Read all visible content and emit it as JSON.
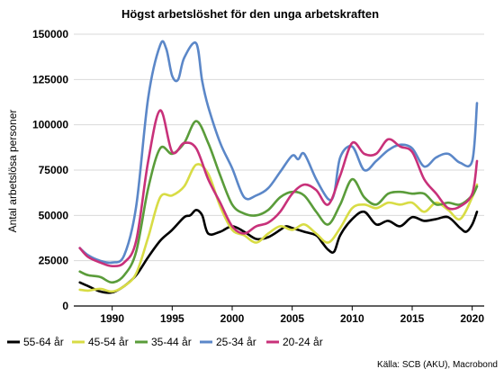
{
  "chart_data": {
    "type": "line",
    "title": "Högst arbetslöshet för den unga arbetskraften",
    "ylabel": "Antal arbetslösa personer",
    "xlabel": "",
    "source": "Källa: SCB (AKU), Macrobond",
    "xlim": [
      1986.8,
      2021.0
    ],
    "ylim": [
      0,
      150000
    ],
    "y_ticks": [
      0,
      25000,
      50000,
      75000,
      100000,
      125000,
      150000
    ],
    "x_ticks": [
      1990,
      1995,
      2000,
      2005,
      2010,
      2015,
      2020
    ],
    "legend_position": "bottom",
    "grid": {
      "horizontal": true,
      "vertical": false
    },
    "series": [
      {
        "name": "55-64 år",
        "color": "#000000",
        "x": [
          1987.3,
          1988,
          1989,
          1990,
          1991,
          1992,
          1993,
          1994,
          1995,
          1996,
          1996.5,
          1997,
          1997.5,
          1998,
          1999,
          2000,
          2001,
          2002,
          2003,
          2004,
          2004.5,
          2005,
          2006,
          2007,
          2007.5,
          2008,
          2008.5,
          2009,
          2010,
          2011,
          2012,
          2013,
          2014,
          2015,
          2016,
          2017,
          2018,
          2019,
          2019.5,
          2020,
          2020.4
        ],
        "y": [
          13000,
          11000,
          8000,
          7500,
          11000,
          17000,
          27000,
          36000,
          42000,
          49000,
          50000,
          53000,
          50000,
          40000,
          41000,
          44000,
          41000,
          37000,
          38000,
          42000,
          44000,
          43000,
          41000,
          39000,
          35000,
          31000,
          30000,
          39000,
          48000,
          52000,
          45000,
          47000,
          44000,
          49000,
          47000,
          48000,
          49000,
          43000,
          41000,
          45000,
          52000
        ]
      },
      {
        "name": "45-54 år",
        "color": "#d8dc45",
        "x": [
          1987.3,
          1988,
          1989,
          1990,
          1991,
          1992,
          1993,
          1994,
          1995,
          1996,
          1997,
          1998,
          1999,
          2000,
          2001,
          2002,
          2003,
          2004,
          2005,
          2006,
          2007,
          2008,
          2009,
          2010,
          2011,
          2012,
          2013,
          2014,
          2015,
          2016,
          2017,
          2018,
          2019,
          2020,
          2020.4
        ],
        "y": [
          9000,
          8500,
          9500,
          8000,
          11000,
          18000,
          38000,
          60000,
          61000,
          66000,
          78000,
          73000,
          55000,
          42000,
          39000,
          35000,
          40000,
          44000,
          42000,
          45000,
          40000,
          35000,
          43000,
          54000,
          56000,
          54000,
          57000,
          56000,
          57000,
          52000,
          57000,
          53000,
          48000,
          60000,
          67000
        ]
      },
      {
        "name": "35-44 år",
        "color": "#5a9c3a",
        "x": [
          1987.3,
          1988,
          1989,
          1990,
          1991,
          1992,
          1993,
          1994,
          1995,
          1996,
          1997,
          1998,
          1999,
          2000,
          2001,
          2002,
          2003,
          2004,
          2005,
          2006,
          2007,
          2008,
          2009,
          2010,
          2011,
          2012,
          2013,
          2014,
          2015,
          2016,
          2017,
          2018,
          2019,
          2020,
          2020.4
        ],
        "y": [
          19000,
          17000,
          16000,
          13000,
          17000,
          30000,
          65000,
          87000,
          84000,
          90000,
          102000,
          90000,
          72000,
          56000,
          51000,
          50000,
          53000,
          60000,
          63000,
          61000,
          52000,
          45000,
          56000,
          70000,
          60000,
          56000,
          62000,
          63000,
          62000,
          62000,
          56000,
          57000,
          56000,
          61000,
          66000
        ]
      },
      {
        "name": "25-34 år",
        "color": "#5b87c8",
        "x": [
          1987.3,
          1988,
          1989,
          1990,
          1991,
          1992,
          1993,
          1994,
          1994.5,
          1995,
          1995.5,
          1996,
          1997,
          1997.5,
          1998,
          1999,
          2000,
          2001,
          2002,
          2003,
          2004,
          2005,
          2005.5,
          2006,
          2007,
          2008,
          2008.5,
          2009,
          2010,
          2011,
          2012,
          2013,
          2014,
          2015,
          2016,
          2017,
          2018,
          2019,
          2020,
          2020.4
        ],
        "y": [
          32000,
          28000,
          25000,
          24000,
          28000,
          55000,
          115000,
          144000,
          142000,
          127000,
          125000,
          137000,
          145000,
          124000,
          110000,
          90000,
          76000,
          60000,
          61000,
          65000,
          74000,
          83000,
          81000,
          84000,
          70000,
          59000,
          62000,
          82000,
          88000,
          75000,
          80000,
          86000,
          89000,
          87000,
          77000,
          82000,
          84000,
          79000,
          80000,
          112000
        ]
      },
      {
        "name": "20-24 år",
        "color": "#c8317a",
        "x": [
          1987.3,
          1988,
          1989,
          1990,
          1991,
          1992,
          1993,
          1994,
          1995,
          1996,
          1997,
          1998,
          1999,
          2000,
          2001,
          2002,
          2003,
          2004,
          2005,
          2006,
          2007,
          2008,
          2009,
          2010,
          2011,
          2012,
          2013,
          2014,
          2015,
          2016,
          2017,
          2018,
          2019,
          2020,
          2020.4
        ],
        "y": [
          32000,
          27000,
          24000,
          22000,
          24000,
          36000,
          80000,
          108000,
          85000,
          90000,
          87000,
          70000,
          57000,
          44000,
          40000,
          44000,
          46000,
          52000,
          62000,
          67000,
          64000,
          56000,
          72000,
          90000,
          84000,
          84000,
          92000,
          88000,
          85000,
          70000,
          62000,
          54000,
          55000,
          62000,
          80000
        ]
      }
    ]
  }
}
